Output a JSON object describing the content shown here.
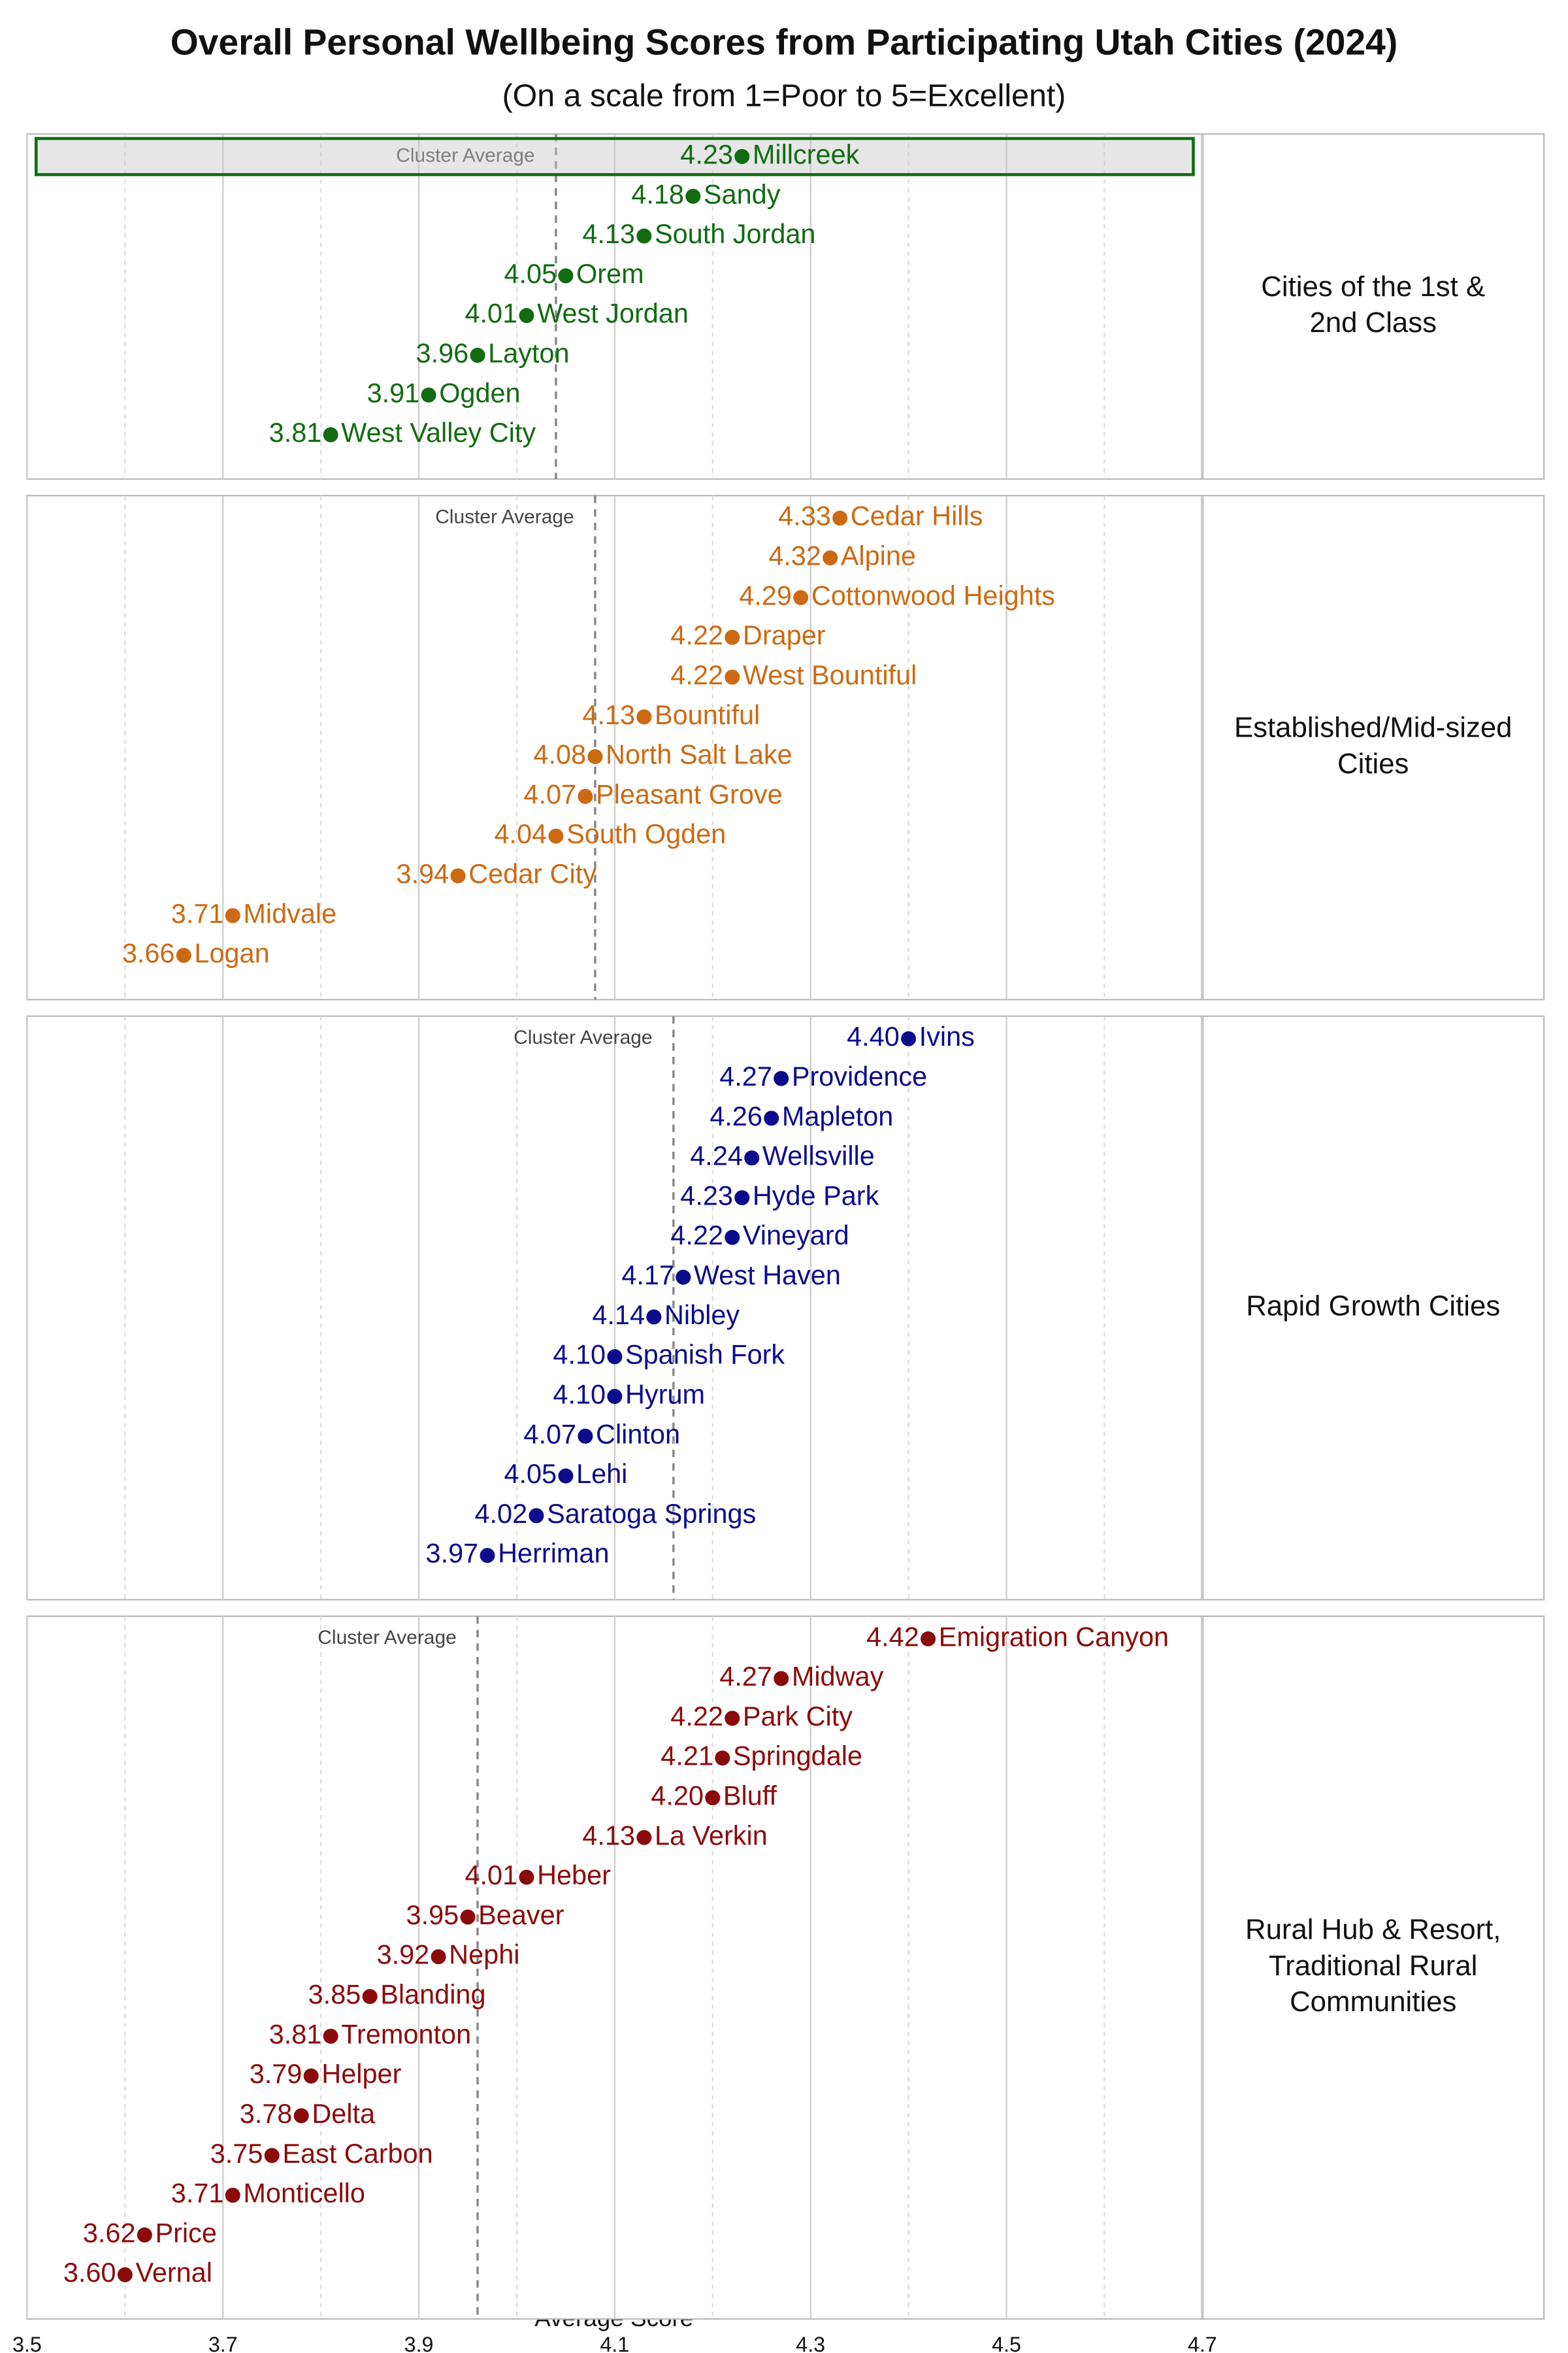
{
  "chart_data": {
    "type": "dot",
    "title": "Overall Personal Wellbeing Scores from Participating Utah Cities (2024)",
    "subtitle": "(On a scale from 1=Poor to 5=Excellent)",
    "x_label": "Average Score",
    "xlim": [
      3.5,
      4.7
    ],
    "xticks": [
      3.5,
      3.7,
      3.9,
      4.1,
      4.3,
      4.5,
      4.7
    ],
    "grid": true,
    "panels": [
      {
        "name": [
          "Cities of the 1st &",
          "2nd Class"
        ],
        "color": "#116b11",
        "highlight_index": 0,
        "average": 4.04,
        "average_label": "Cluster Average",
        "categories": [
          "Millcreek",
          "Sandy",
          "South Jordan",
          "Orem",
          "West Jordan",
          "Layton",
          "Ogden",
          "West Valley City"
        ],
        "values": [
          4.23,
          4.18,
          4.13,
          4.05,
          4.01,
          3.96,
          3.91,
          3.81
        ],
        "value_labels": [
          "4.23",
          "4.18",
          "4.13",
          "4.05",
          "4.01",
          "3.96",
          "3.91",
          "3.81"
        ]
      },
      {
        "name": [
          "Established/Mid-sized",
          "Cities"
        ],
        "color": "#cc6a14",
        "average": 4.08,
        "average_label": "Cluster Average",
        "categories": [
          "Cedar Hills",
          "Alpine",
          "Cottonwood Heights",
          "Draper",
          "West Bountiful",
          "Bountiful",
          "North Salt Lake",
          "Pleasant Grove",
          "South Ogden",
          "Cedar City",
          "Midvale",
          "Logan"
        ],
        "values": [
          4.33,
          4.32,
          4.29,
          4.22,
          4.22,
          4.13,
          4.08,
          4.07,
          4.04,
          3.94,
          3.71,
          3.66
        ],
        "value_labels": [
          "4.33",
          "4.32",
          "4.29",
          "4.22",
          "4.22",
          "4.13",
          "4.08",
          "4.07",
          "4.04",
          "3.94",
          "3.71",
          "3.66"
        ]
      },
      {
        "name": [
          "Rapid Growth Cities"
        ],
        "color": "#0c0c8c",
        "average": 4.16,
        "average_label": "Cluster Average",
        "categories": [
          "Ivins",
          "Providence",
          "Mapleton",
          "Wellsville",
          "Hyde Park",
          "Vineyard",
          "West Haven",
          "Nibley",
          "Spanish Fork",
          "Hyrum",
          "Clinton",
          "Lehi",
          "Saratoga Springs",
          "Herriman"
        ],
        "values": [
          4.4,
          4.27,
          4.26,
          4.24,
          4.23,
          4.22,
          4.17,
          4.14,
          4.1,
          4.1,
          4.07,
          4.05,
          4.02,
          3.97
        ],
        "value_labels": [
          "4.40",
          "4.27",
          "4.26",
          "4.24",
          "4.23",
          "4.22",
          "4.17",
          "4.14",
          "4.10",
          "4.10",
          "4.07",
          "4.05",
          "4.02",
          "3.97"
        ]
      },
      {
        "name": [
          "Rural Hub & Resort,",
          "Traditional Rural",
          "Communities"
        ],
        "color": "#8b0b0b",
        "average": 3.96,
        "average_label": "Cluster Average",
        "categories": [
          "Emigration Canyon",
          "Midway",
          "Park City",
          "Springdale",
          "Bluff",
          "La Verkin",
          "Heber",
          "Beaver",
          "Nephi",
          "Blanding",
          "Tremonton",
          "Helper",
          "Delta",
          "East Carbon",
          "Monticello",
          "Price",
          "Vernal"
        ],
        "values": [
          4.42,
          4.27,
          4.22,
          4.21,
          4.2,
          4.13,
          4.01,
          3.95,
          3.92,
          3.85,
          3.81,
          3.79,
          3.78,
          3.75,
          3.71,
          3.62,
          3.6
        ],
        "value_labels": [
          "4.42",
          "4.27",
          "4.22",
          "4.21",
          "4.20",
          "4.13",
          "4.01",
          "3.95",
          "3.92",
          "3.85",
          "3.81",
          "3.79",
          "3.78",
          "3.75",
          "3.71",
          "3.62",
          "3.60"
        ]
      }
    ]
  }
}
